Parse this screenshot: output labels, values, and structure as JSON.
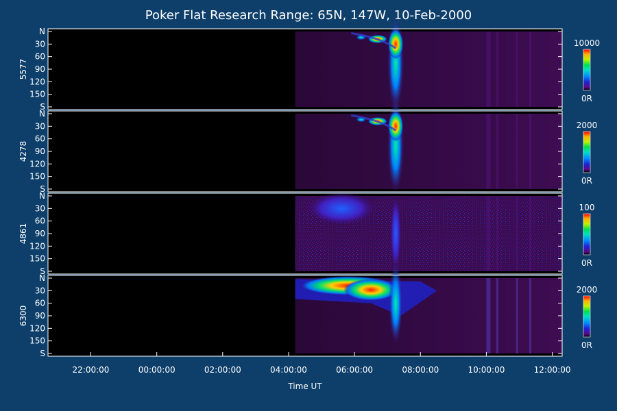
{
  "chart_data": {
    "type": "heatmap",
    "title": "Poker Flat Research Range: 65N, 147W, 10-Feb-2000",
    "xlabel": "Time UT",
    "x_tick_labels": [
      "22:00:00",
      "00:00:00",
      "02:00:00",
      "04:00:00",
      "06:00:00",
      "08:00:00",
      "10:00:00",
      "12:00:00"
    ],
    "x_range_hours": [
      20.7,
      36.3
    ],
    "x_tick_hours": [
      22,
      24,
      26,
      28,
      30,
      32,
      34,
      36
    ],
    "y_tick_labels": [
      "N",
      "30",
      "60",
      "90",
      "120",
      "150",
      "S"
    ],
    "y_tick_values": [
      0,
      30,
      60,
      90,
      120,
      150,
      180
    ],
    "y_range": [
      0,
      180
    ],
    "data_start_hours": 28.2,
    "panels": [
      {
        "name": "5577",
        "colorbar_max": "10000",
        "colorbar_min": "0R"
      },
      {
        "name": "4278",
        "colorbar_max": "2000",
        "colorbar_min": "0R"
      },
      {
        "name": "4861",
        "colorbar_max": "100",
        "colorbar_min": "0R"
      },
      {
        "name": "6300",
        "colorbar_max": "2000",
        "colorbar_min": "0R"
      }
    ],
    "colors": {
      "background": "#0e3f6b",
      "no_data": "#000000",
      "low": "#3a0a48",
      "colormap": [
        "#5a0a8a",
        "#3020d0",
        "#0060ff",
        "#00c0ff",
        "#00e070",
        "#a0f000",
        "#ffd000",
        "#ff6000",
        "#ff0000"
      ]
    }
  }
}
